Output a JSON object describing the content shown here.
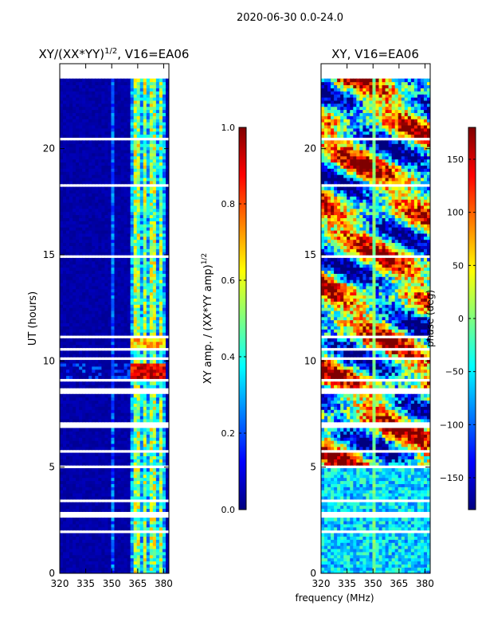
{
  "figure": {
    "suptitle": "2020-06-30 0.0-24.0",
    "shared_xlabel": "frequency (MHz)"
  },
  "chart_data": [
    {
      "type": "heatmap",
      "title": "XY/(XX*YY)",
      "title_exponent": "1/2",
      "title_suffix": ", V16=EA06",
      "xlabel": "",
      "ylabel": "UT (hours)",
      "xlim": [
        320,
        383
      ],
      "ylim": [
        0,
        24
      ],
      "xticks": [
        320,
        335,
        350,
        365,
        380
      ],
      "yticks": [
        0,
        5,
        10,
        15,
        20
      ],
      "data_extent_hours": [
        0,
        23.3
      ],
      "colorbar": {
        "label": "XY amp. / (XX*YY amp)",
        "label_exponent": "1/2",
        "range": [
          0.0,
          1.0
        ],
        "ticks": [
          "0.0",
          "0.2",
          "0.4",
          "0.6",
          "0.8",
          "1.0"
        ],
        "colormap": "jet"
      },
      "features": {
        "bright_band_mhz": [
          360,
          381
        ],
        "strong_event_hours": [
          9.2,
          9.9
        ],
        "moderate_event_hours": [
          10.5,
          11.2
        ],
        "spur_mhz": 351
      }
    },
    {
      "type": "heatmap",
      "title": "XY, V16=EA06",
      "xlabel": "frequency (MHz)",
      "ylabel": "",
      "xlim": [
        320,
        383
      ],
      "ylim": [
        0,
        24
      ],
      "xticks": [
        320,
        335,
        350,
        365,
        380
      ],
      "yticks": [
        0,
        5,
        10,
        15,
        20
      ],
      "data_extent_hours": [
        0,
        23.3
      ],
      "colorbar": {
        "label": "phase (deg)",
        "range": [
          -180,
          180
        ],
        "ticks": [
          "−150",
          "−100",
          "−50",
          "0",
          "50",
          "100",
          "150"
        ],
        "colormap": "jet"
      }
    }
  ],
  "colors": {
    "jet_stops": [
      "#00007f",
      "#0000ff",
      "#007fff",
      "#00ffff",
      "#7fff7f",
      "#ffff00",
      "#ff7f00",
      "#ff0000",
      "#7f0000"
    ],
    "flag_gap": "#ffffff",
    "axes": "#000000"
  }
}
